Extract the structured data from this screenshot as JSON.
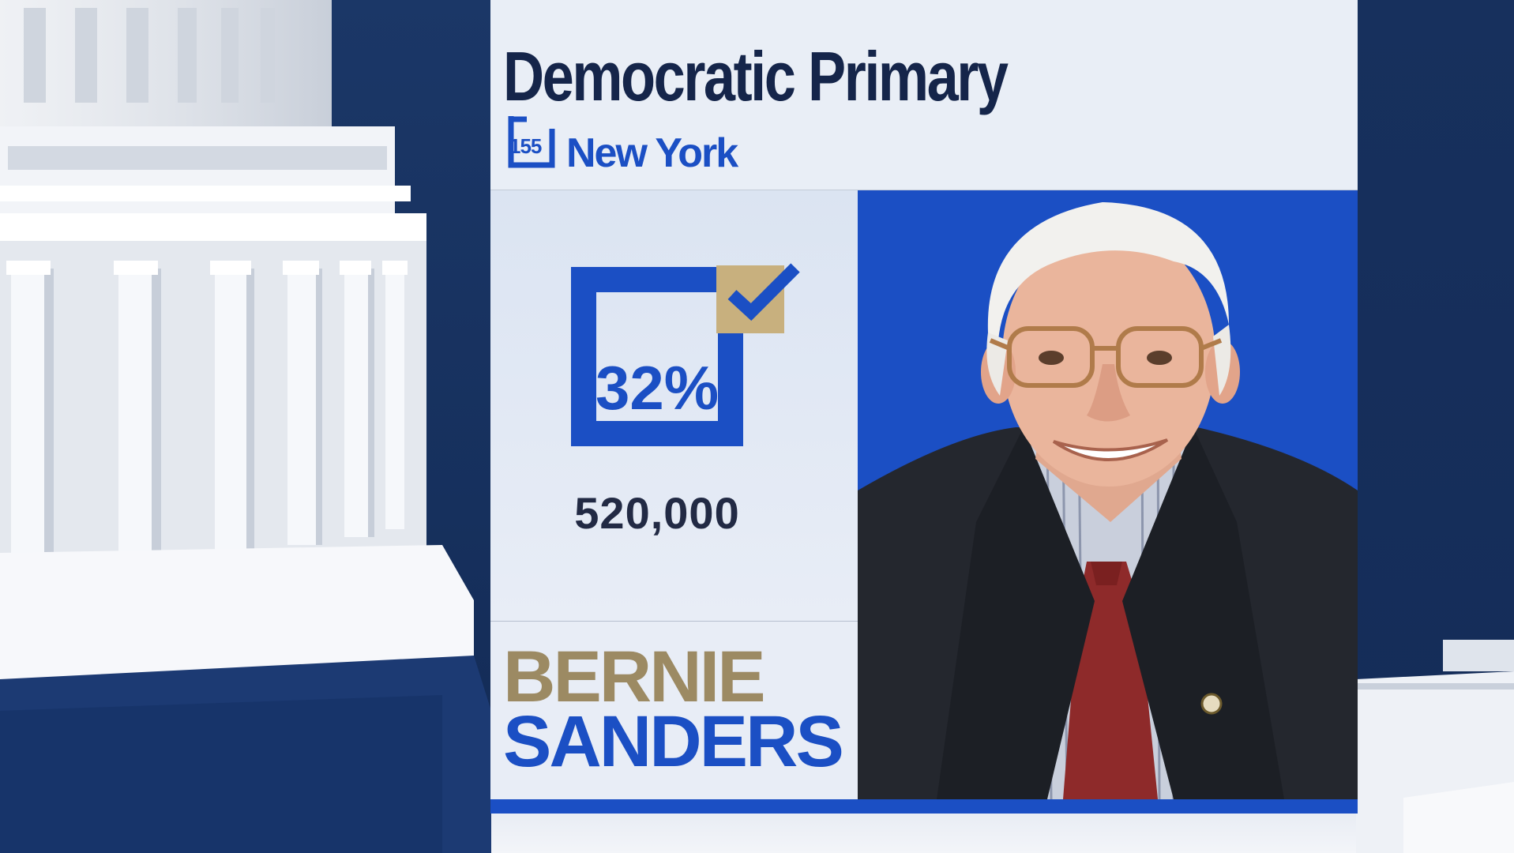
{
  "graphic": {
    "title": "Democratic Primary",
    "district_number": "155",
    "state": "New York",
    "percentage": "32%",
    "votes": "520,000",
    "candidate_first_name": "BERNIE",
    "candidate_last_name": "SANDERS",
    "winner_checkmark_icon": "checkmark-icon",
    "colors": {
      "accent_blue": "#1b4fc4",
      "gold": "#c8b07e",
      "navy": "#15254a",
      "background_navy": "#14305f"
    }
  }
}
